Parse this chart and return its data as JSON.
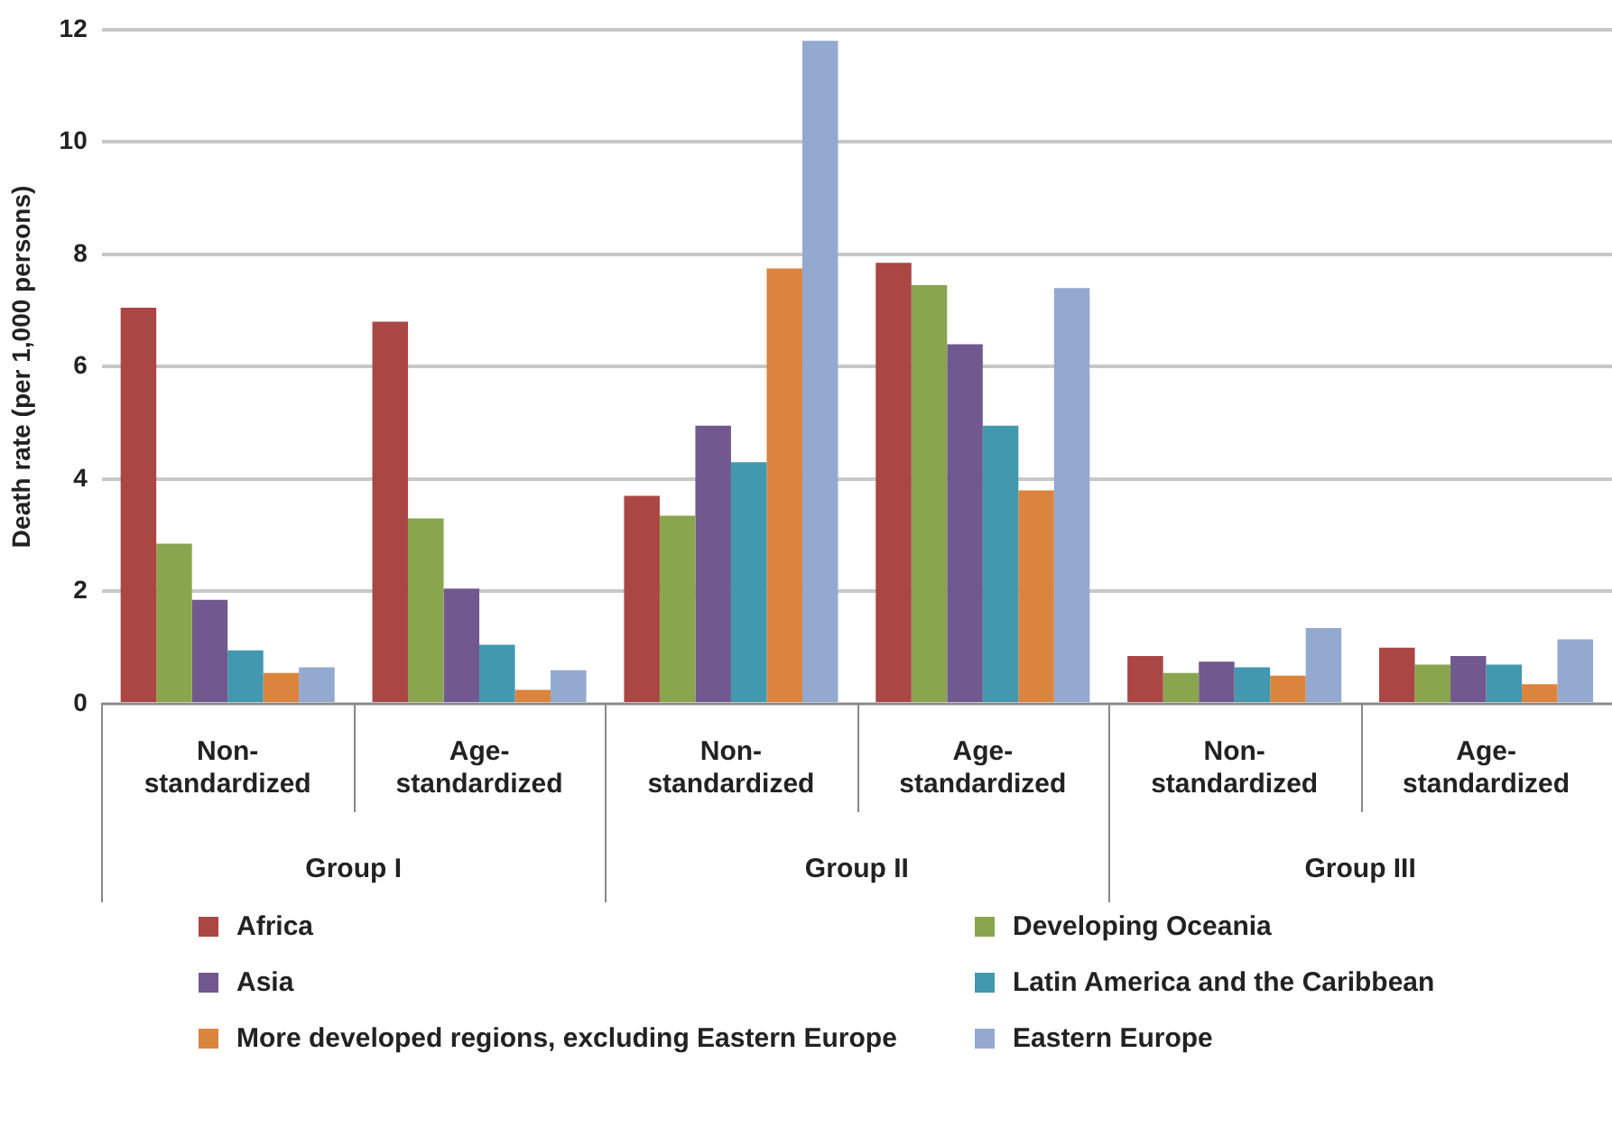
{
  "chart_data": {
    "type": "bar",
    "ylabel": "Death rate (per 1,000 persons)",
    "categories": [
      "Non-standardized",
      "Age-standardized",
      "Non-standardized",
      "Age-standardized",
      "Non-standardized",
      "Age-standardized"
    ],
    "annotations": [
      "Group I",
      "Group II",
      "Group III"
    ],
    "series": [
      {
        "name": "Africa",
        "color": "#aa4643",
        "values": [
          7.05,
          6.8,
          3.7,
          7.85,
          0.85,
          1.0
        ]
      },
      {
        "name": "Developing Oceania",
        "color": "#89a54e",
        "values": [
          2.85,
          3.3,
          3.35,
          7.45,
          0.55,
          0.7
        ]
      },
      {
        "name": "Asia",
        "color": "#71588f",
        "values": [
          1.85,
          2.05,
          4.95,
          6.4,
          0.75,
          0.85
        ]
      },
      {
        "name": "Latin America and the Caribbean",
        "color": "#4198af",
        "values": [
          0.95,
          1.05,
          4.3,
          4.95,
          0.65,
          0.7
        ]
      },
      {
        "name": "More developed regions, excluding Eastern Europe",
        "color": "#db843d",
        "values": [
          0.55,
          0.25,
          7.75,
          3.8,
          0.5,
          0.35
        ]
      },
      {
        "name": "Eastern Europe",
        "color": "#93a9cf",
        "values": [
          0.65,
          0.6,
          11.8,
          7.4,
          1.35,
          1.15
        ]
      }
    ],
    "ylim": [
      0,
      12
    ],
    "yticks": [
      0,
      2,
      4,
      6,
      8,
      10,
      12
    ],
    "grid": "y",
    "legend": "bottom"
  }
}
